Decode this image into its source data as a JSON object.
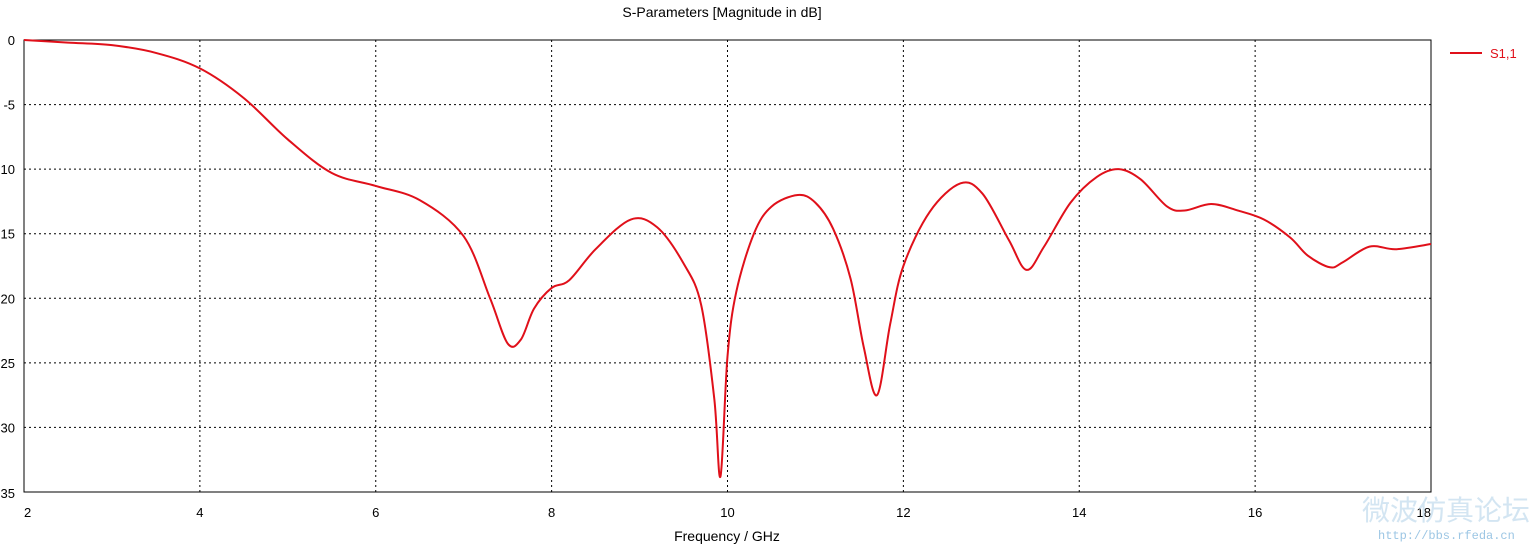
{
  "chart_data": {
    "type": "line",
    "title": "S-Parameters [Magnitude in dB]",
    "xlabel": "Frequency / GHz",
    "ylabel": "",
    "xlim": [
      2,
      18
    ],
    "ylim": [
      -35,
      0
    ],
    "xticks": [
      2,
      4,
      6,
      8,
      10,
      12,
      14,
      16,
      18
    ],
    "yticks": [
      0,
      -5,
      -10,
      -15,
      -20,
      -25,
      -30,
      -35
    ],
    "ytick_labels": [
      "0",
      "-5",
      "-10",
      "-15",
      "-20",
      "-25",
      "-30",
      "-35"
    ],
    "grid": true,
    "legend_position": "right",
    "series": [
      {
        "name": "S1,1",
        "color": "#e0101a",
        "x": [
          2.0,
          2.5,
          3.0,
          3.5,
          4.0,
          4.5,
          5.0,
          5.5,
          6.0,
          6.5,
          7.0,
          7.3,
          7.5,
          7.65,
          7.8,
          8.0,
          8.2,
          8.5,
          8.9,
          9.2,
          9.5,
          9.7,
          9.85,
          9.92,
          10.0,
          10.1,
          10.3,
          10.5,
          10.8,
          11.0,
          11.2,
          11.4,
          11.55,
          11.7,
          11.85,
          12.0,
          12.3,
          12.65,
          12.9,
          13.2,
          13.4,
          13.6,
          13.9,
          14.2,
          14.45,
          14.7,
          15.0,
          15.2,
          15.5,
          15.8,
          16.1,
          16.4,
          16.6,
          16.85,
          17.0,
          17.3,
          17.6,
          18.0
        ],
        "y": [
          0.0,
          -0.2,
          -0.4,
          -1.0,
          -2.2,
          -4.5,
          -7.7,
          -10.3,
          -11.3,
          -12.4,
          -15.2,
          -20.0,
          -23.5,
          -23.2,
          -20.8,
          -19.2,
          -18.6,
          -16.2,
          -13.9,
          -14.5,
          -17.3,
          -20.5,
          -27.8,
          -33.8,
          -24.5,
          -19.5,
          -15.0,
          -12.9,
          -12.0,
          -12.6,
          -14.6,
          -18.5,
          -23.8,
          -27.5,
          -22.0,
          -17.5,
          -13.3,
          -11.1,
          -11.9,
          -15.5,
          -17.8,
          -16.0,
          -12.6,
          -10.6,
          -10.0,
          -10.8,
          -12.9,
          -13.2,
          -12.7,
          -13.2,
          -13.9,
          -15.3,
          -16.7,
          -17.6,
          -17.2,
          -16.0,
          -16.2,
          -15.8
        ]
      }
    ]
  },
  "watermark": {
    "cn_text": "微波仿真论坛",
    "url_text": "http://bbs.rfeda.cn"
  }
}
